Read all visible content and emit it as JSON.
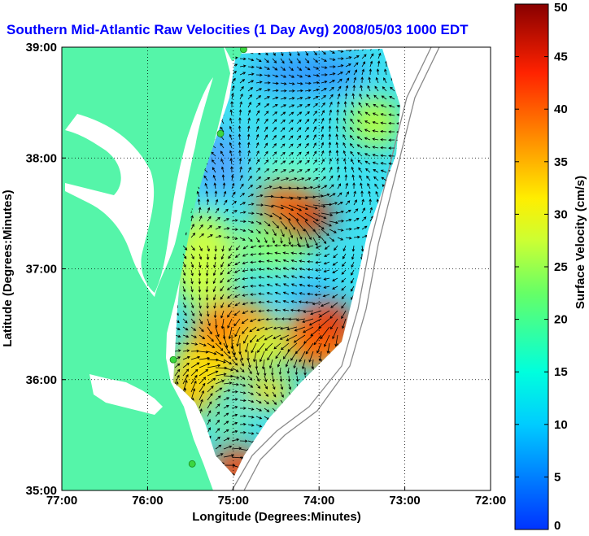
{
  "chart_data": {
    "type": "heatmap",
    "title": "Southern Mid-Atlantic Raw Velocities (1 Day Avg) 2008/05/03 1000 EDT",
    "xlabel": "Longitude (Degrees:Minutes)",
    "ylabel": "Latitude (Degrees:Minutes)",
    "xlim": [
      -77,
      -72
    ],
    "ylim": [
      35,
      39
    ],
    "x_ticks": [
      {
        "value": -77,
        "label": "77:00"
      },
      {
        "value": -76,
        "label": "76:00"
      },
      {
        "value": -75,
        "label": "75:00"
      },
      {
        "value": -74,
        "label": "74:00"
      },
      {
        "value": -73,
        "label": "73:00"
      },
      {
        "value": -72,
        "label": "72:00"
      }
    ],
    "y_ticks": [
      {
        "value": 35,
        "label": "35:00"
      },
      {
        "value": 36,
        "label": "36:00"
      },
      {
        "value": 37,
        "label": "37:00"
      },
      {
        "value": 38,
        "label": "38:00"
      },
      {
        "value": 39,
        "label": "39:00"
      }
    ],
    "grid": true,
    "colorbar": {
      "label": "Surface Velocity (cm/s)",
      "range": [
        0,
        50
      ],
      "ticks": [
        "0",
        "5",
        "10",
        "15",
        "20",
        "25",
        "30",
        "35",
        "40",
        "45",
        "50"
      ],
      "placement": "right"
    },
    "colors": {
      "land": "#55f5a9",
      "grid": "#000000",
      "title": "#0000ff",
      "station": "#3bd640"
    },
    "stations": [
      {
        "lon": -74.88,
        "lat": 38.98
      },
      {
        "lon": -75.15,
        "lat": 38.22
      },
      {
        "lon": -75.7,
        "lat": 36.18
      },
      {
        "lon": -75.48,
        "lat": 35.24
      }
    ],
    "speed_hotspots": [
      {
        "lon": -74.15,
        "lat": 37.48,
        "speed": 46
      },
      {
        "lon": -74.4,
        "lat": 37.58,
        "speed": 40
      },
      {
        "lon": -73.9,
        "lat": 36.5,
        "speed": 45
      },
      {
        "lon": -74.15,
        "lat": 36.35,
        "speed": 40
      },
      {
        "lon": -75.05,
        "lat": 36.4,
        "speed": 38
      },
      {
        "lon": -75.3,
        "lat": 36.1,
        "speed": 32
      },
      {
        "lon": -75.55,
        "lat": 35.85,
        "speed": 34
      },
      {
        "lon": -74.95,
        "lat": 35.2,
        "speed": 42
      },
      {
        "lon": -74.65,
        "lat": 36.3,
        "speed": 28
      }
    ]
  }
}
